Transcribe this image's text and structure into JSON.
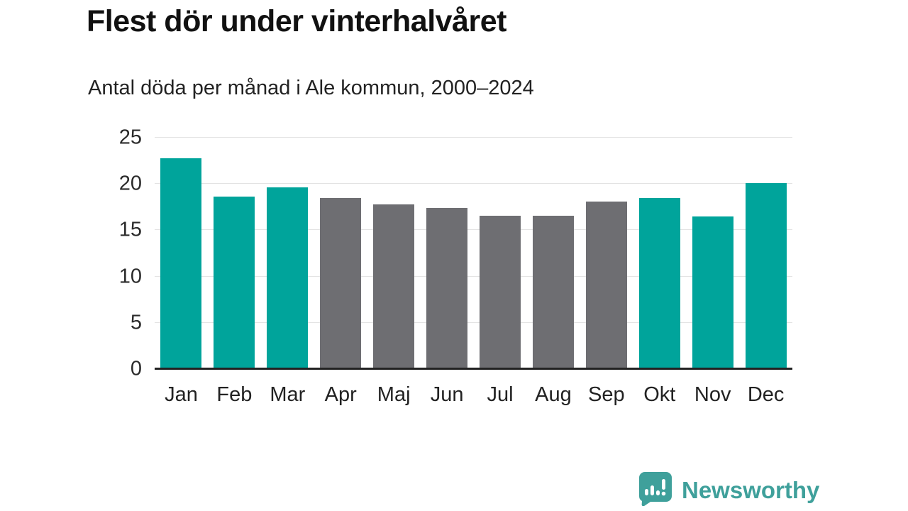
{
  "header": {
    "title": "Flest dör under vinterhalvåret",
    "subtitle": "Antal döda per månad i Ale kommun, 2000–2024"
  },
  "chart_data": {
    "type": "bar",
    "title": "Flest dör under vinterhalvåret",
    "subtitle": "Antal döda per månad i Ale kommun, 2000–2024",
    "categories": [
      "Jan",
      "Feb",
      "Mar",
      "Apr",
      "Maj",
      "Jun",
      "Jul",
      "Aug",
      "Sep",
      "Okt",
      "Nov",
      "Dec"
    ],
    "values": [
      22.8,
      18.6,
      19.6,
      18.5,
      17.8,
      17.4,
      16.6,
      16.6,
      18.1,
      18.5,
      16.5,
      20.1
    ],
    "highlighted": [
      true,
      true,
      true,
      false,
      false,
      false,
      false,
      false,
      false,
      true,
      true,
      true
    ],
    "xlabel": "",
    "ylabel": "",
    "ylim": [
      0,
      25
    ],
    "yticks": [
      0,
      5,
      10,
      15,
      20,
      25
    ],
    "grid": true,
    "legend": "none",
    "colors": {
      "highlight": "#00a49b",
      "muted": "#6e6e72",
      "gridline": "#e3e3e3",
      "axis": "#222222"
    }
  },
  "footer": {
    "brand": "Newsworthy",
    "brand_color": "#3fa09b"
  }
}
